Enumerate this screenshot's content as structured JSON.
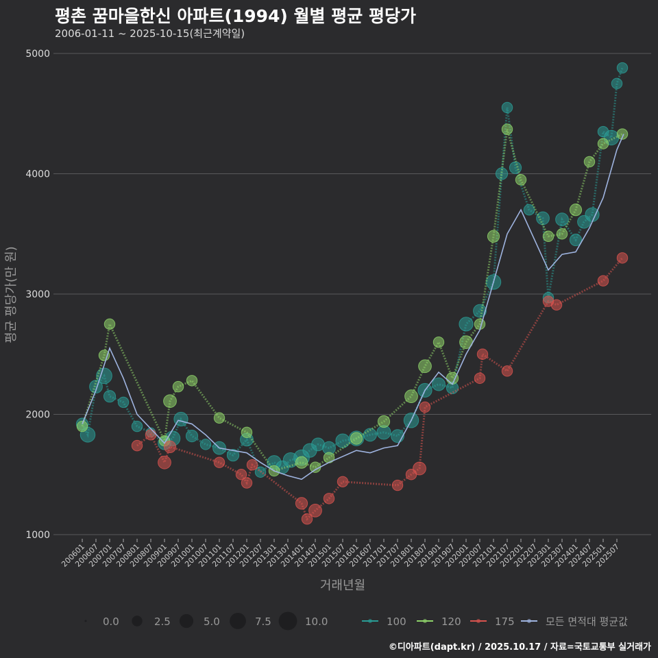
{
  "title": "평촌 꿈마을한신 아파트(1994) 월별 평균 평당가",
  "subtitle": "2006-01-11 ~ 2025-10-15(최근계약일)",
  "caption": "©디아파트(dapt.kr) / 2025.10.17 / 자료=국토교통부 실거래가",
  "colors": {
    "bg": "#2b2b2d",
    "grid": "#5a5a5c",
    "s100": "#2a9d96",
    "s120": "#8fd46a",
    "s175": "#d9534f",
    "avg": "#9fb4e0"
  },
  "chart_data": {
    "type": "scatter",
    "title": "평촌 꿈마을한신 아파트(1994) 월별 평균 평당가",
    "xlabel": "거래년월",
    "ylabel": "평균 평당가(만 원)",
    "ylim": [
      1000,
      5000
    ],
    "xlim": [
      2004.95,
      2026.75
    ],
    "yticks": [
      "1000",
      "2000",
      "3000",
      "4000",
      "5000"
    ],
    "yticks_values": [
      1000,
      2000,
      3000,
      4000,
      5000
    ],
    "xticks": [
      "200601",
      "200607",
      "200701",
      "200707",
      "200801",
      "200807",
      "200901",
      "200907",
      "201001",
      "201007",
      "201101",
      "201107",
      "201201",
      "201207",
      "201301",
      "201307",
      "201401",
      "201407",
      "201501",
      "201507",
      "201601",
      "201607",
      "201701",
      "201707",
      "201801",
      "201807",
      "201901",
      "201907",
      "202001",
      "202007",
      "202101",
      "202107",
      "202201",
      "202207",
      "202301",
      "202307",
      "202401",
      "202407",
      "202501",
      "202507"
    ],
    "grid": true,
    "legend": {
      "position": "bottom",
      "size_title": "",
      "sizes": [
        {
          "label": "0.0",
          "v": 0
        },
        {
          "label": "2.5",
          "v": 2.5
        },
        {
          "label": "5.0",
          "v": 5
        },
        {
          "label": "7.5",
          "v": 7.5
        },
        {
          "label": "10.0",
          "v": 10
        }
      ],
      "series": [
        {
          "label": "100",
          "key": "s100"
        },
        {
          "label": "120",
          "key": "s120"
        },
        {
          "label": "175",
          "key": "s175"
        },
        {
          "label": "모든 면적대 평균값",
          "key": "avg"
        }
      ]
    },
    "series": [
      {
        "name": "100",
        "key": "s100",
        "x": [
          2006.0,
          2006.2,
          2006.5,
          2006.8,
          2007.0,
          2007.5,
          2008.0,
          2008.5,
          2009.0,
          2009.3,
          2009.6,
          2010.0,
          2010.5,
          2011.0,
          2011.5,
          2012.0,
          2012.5,
          2013.0,
          2013.3,
          2013.6,
          2014.0,
          2014.3,
          2014.6,
          2015.0,
          2015.5,
          2016.0,
          2016.5,
          2017.0,
          2017.5,
          2018.0,
          2018.5,
          2019.0,
          2019.5,
          2020.0,
          2020.5,
          2021.0,
          2021.3,
          2021.5,
          2021.8,
          2022.3,
          2022.8,
          2023.0,
          2023.5,
          2024.0,
          2024.3,
          2024.6,
          2025.0,
          2025.3,
          2025.5,
          2025.7
        ],
        "y": [
          1920,
          1830,
          2230,
          2320,
          2150,
          2100,
          1900,
          1850,
          1760,
          1800,
          1960,
          1820,
          1750,
          1720,
          1660,
          1790,
          1520,
          1600,
          1560,
          1620,
          1640,
          1700,
          1750,
          1720,
          1780,
          1800,
          1830,
          1850,
          1820,
          1950,
          2200,
          2250,
          2220,
          2750,
          2860,
          3100,
          4000,
          4550,
          4050,
          3700,
          3630,
          2970,
          3620,
          3450,
          3600,
          3660,
          4350,
          4300,
          4750,
          4880
        ],
        "n": [
          4,
          7,
          5,
          8,
          4,
          3,
          3,
          2,
          5,
          7,
          6,
          4,
          3,
          5,
          4,
          5,
          3,
          6,
          5,
          7,
          8,
          6,
          5,
          5,
          6,
          7,
          5,
          6,
          5,
          7,
          6,
          5,
          4,
          6,
          5,
          7,
          4,
          3,
          4,
          3,
          5,
          3,
          5,
          4,
          5,
          6,
          3,
          7,
          3,
          3
        ]
      },
      {
        "name": "120",
        "key": "s120",
        "x": [
          2006.0,
          2006.8,
          2007.0,
          2009.0,
          2009.2,
          2009.5,
          2010.0,
          2011.0,
          2012.0,
          2013.0,
          2014.0,
          2014.5,
          2015.0,
          2016.0,
          2017.0,
          2018.0,
          2018.5,
          2019.0,
          2019.5,
          2020.0,
          2020.5,
          2021.0,
          2021.5,
          2022.0,
          2023.0,
          2023.5,
          2024.0,
          2024.5,
          2025.0,
          2025.7
        ],
        "y": [
          1900,
          2490,
          2750,
          1780,
          2110,
          2230,
          2280,
          1970,
          1850,
          1530,
          1600,
          1560,
          1640,
          1800,
          1940,
          2150,
          2400,
          2600,
          2300,
          2600,
          2750,
          3480,
          4370,
          3950,
          3480,
          3500,
          3700,
          4100,
          4250,
          4330
        ],
        "n": [
          3,
          3,
          3,
          3,
          5,
          3,
          3,
          3,
          3,
          3,
          4,
          3,
          3,
          4,
          4,
          5,
          5,
          3,
          4,
          5,
          3,
          4,
          3,
          3,
          3,
          3,
          4,
          3,
          3,
          3
        ]
      },
      {
        "name": "175",
        "key": "s175",
        "x": [
          2008.0,
          2008.5,
          2009.0,
          2009.2,
          2011.0,
          2011.8,
          2012.0,
          2012.2,
          2014.0,
          2014.2,
          2014.5,
          2015.0,
          2015.5,
          2017.5,
          2018.0,
          2018.3,
          2018.5,
          2020.5,
          2020.6,
          2021.5,
          2023.0,
          2023.3,
          2025.0,
          2025.7
        ],
        "y": [
          1740,
          1830,
          1600,
          1730,
          1600,
          1500,
          1430,
          1580,
          1260,
          1130,
          1200,
          1300,
          1440,
          1410,
          1500,
          1550,
          2060,
          2300,
          2500,
          2360,
          2940,
          2910,
          3110,
          3300
        ],
        "n": [
          3,
          3,
          5,
          4,
          3,
          3,
          3,
          3,
          4,
          3,
          5,
          3,
          3,
          3,
          3,
          5,
          3,
          3,
          3,
          3,
          3,
          3,
          3,
          3
        ]
      },
      {
        "name": "모든 면적대 평균값",
        "key": "avg",
        "x": [
          2006.0,
          2006.5,
          2007.0,
          2007.5,
          2008.0,
          2008.5,
          2009.0,
          2009.5,
          2010.0,
          2010.5,
          2011.0,
          2011.5,
          2012.0,
          2012.5,
          2013.0,
          2013.5,
          2014.0,
          2014.5,
          2015.0,
          2015.5,
          2016.0,
          2016.5,
          2017.0,
          2017.5,
          2018.0,
          2018.5,
          2019.0,
          2019.5,
          2020.0,
          2020.5,
          2021.0,
          2021.5,
          2022.0,
          2022.5,
          2023.0,
          2023.5,
          2024.0,
          2024.5,
          2025.0,
          2025.5,
          2025.75
        ],
        "y": [
          1920,
          2200,
          2550,
          2300,
          2000,
          1880,
          1760,
          1950,
          1920,
          1830,
          1720,
          1700,
          1680,
          1600,
          1530,
          1490,
          1460,
          1540,
          1600,
          1650,
          1700,
          1680,
          1720,
          1740,
          1950,
          2200,
          2350,
          2250,
          2500,
          2700,
          3100,
          3500,
          3700,
          3450,
          3200,
          3330,
          3350,
          3550,
          3800,
          4200,
          4330
        ]
      }
    ]
  }
}
